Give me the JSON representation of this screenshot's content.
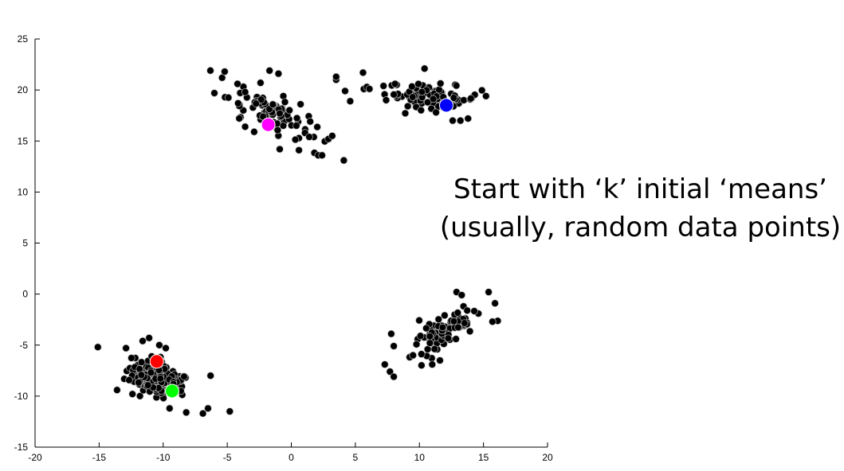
{
  "caption": {
    "line1": "Start with ‘k’ initial ‘means’",
    "line2": "(usually, random data points)"
  },
  "chart_data": {
    "type": "scatter",
    "title": "",
    "xlabel": "",
    "ylabel": "",
    "xlim": [
      -20,
      20
    ],
    "ylim": [
      -15,
      25
    ],
    "xticks": [
      -20,
      -15,
      -10,
      -5,
      0,
      5,
      10,
      15,
      20
    ],
    "yticks": [
      -15,
      -10,
      -5,
      0,
      5,
      10,
      15,
      20,
      25
    ],
    "grid": false,
    "legend": "none",
    "clusters": [
      {
        "center": [
          -10.5,
          -8.3
        ],
        "spread": [
          1.9,
          1.3
        ],
        "rotation_deg": -28,
        "count": 150
      },
      {
        "center": [
          -1.5,
          17.8
        ],
        "spread": [
          2.9,
          1.3
        ],
        "rotation_deg": -32,
        "count": 85
      },
      {
        "center": [
          11.0,
          19.4
        ],
        "spread": [
          3.0,
          0.9
        ],
        "rotation_deg": -6,
        "count": 75
      },
      {
        "center": [
          12.0,
          -3.8
        ],
        "spread": [
          2.8,
          1.1
        ],
        "rotation_deg": 40,
        "count": 90
      }
    ],
    "points": [
      [
        -15.1,
        -5.2
      ],
      [
        -13.6,
        -9.4
      ],
      [
        -12.4,
        -9.8
      ],
      [
        -11.6,
        -4.6
      ],
      [
        -11.1,
        -4.3
      ],
      [
        -9.5,
        -11.2
      ],
      [
        -8.2,
        -11.6
      ],
      [
        -6.9,
        -11.7
      ],
      [
        -6.3,
        -8.0
      ],
      [
        -6.5,
        -11.2
      ],
      [
        -4.8,
        -11.5
      ],
      [
        -12.9,
        -5.3
      ],
      [
        -9.8,
        -5.3
      ],
      [
        -10.3,
        -5.0
      ],
      [
        -6.0,
        19.7
      ],
      [
        -5.4,
        21.2
      ],
      [
        -5.2,
        21.8
      ],
      [
        -4.2,
        20.6
      ],
      [
        -3.6,
        19.8
      ],
      [
        -2.4,
        20.7
      ],
      [
        -1.7,
        21.9
      ],
      [
        -1.0,
        21.6
      ],
      [
        -0.9,
        17.7
      ],
      [
        0.4,
        16.5
      ],
      [
        1.4,
        15.4
      ],
      [
        2.1,
        13.6
      ],
      [
        2.4,
        13.6
      ],
      [
        2.9,
        15.2
      ],
      [
        3.2,
        15.5
      ],
      [
        4.1,
        13.1
      ],
      [
        -2.9,
        15.9
      ],
      [
        -3.6,
        16.4
      ],
      [
        -0.9,
        14.2
      ],
      [
        0.6,
        14.1
      ],
      [
        3.5,
        21.0
      ],
      [
        3.5,
        21.3
      ],
      [
        4.2,
        19.9
      ],
      [
        4.6,
        18.9
      ],
      [
        5.6,
        21.7
      ],
      [
        5.9,
        20.3
      ],
      [
        6.1,
        20.1
      ],
      [
        7.2,
        20.4
      ],
      [
        7.4,
        19.0
      ],
      [
        8.1,
        20.6
      ],
      [
        10.4,
        22.1
      ],
      [
        11.3,
        17.8
      ],
      [
        12.6,
        17.0
      ],
      [
        13.2,
        17.0
      ],
      [
        13.8,
        17.2
      ],
      [
        15.2,
        19.4
      ],
      [
        7.3,
        -6.9
      ],
      [
        7.7,
        -7.6
      ],
      [
        8.0,
        -8.1
      ],
      [
        7.8,
        -3.9
      ],
      [
        8.0,
        -5.1
      ],
      [
        9.5,
        -6.0
      ],
      [
        11.0,
        -6.9
      ],
      [
        11.6,
        -6.5
      ],
      [
        12.9,
        0.2
      ],
      [
        13.3,
        -0.1
      ],
      [
        15.4,
        0.2
      ],
      [
        15.9,
        -0.9
      ],
      [
        15.7,
        -2.7
      ]
    ],
    "means": [
      {
        "x": -10.5,
        "y": -6.6,
        "color": "#ff0000"
      },
      {
        "x": -9.3,
        "y": -9.5,
        "color": "#00ff00"
      },
      {
        "x": -1.8,
        "y": 16.6,
        "color": "#ff00ff"
      },
      {
        "x": 12.1,
        "y": 18.5,
        "color": "#0000ff"
      }
    ],
    "point_color": "#000000",
    "point_edge_color": "#bbbbbb"
  }
}
